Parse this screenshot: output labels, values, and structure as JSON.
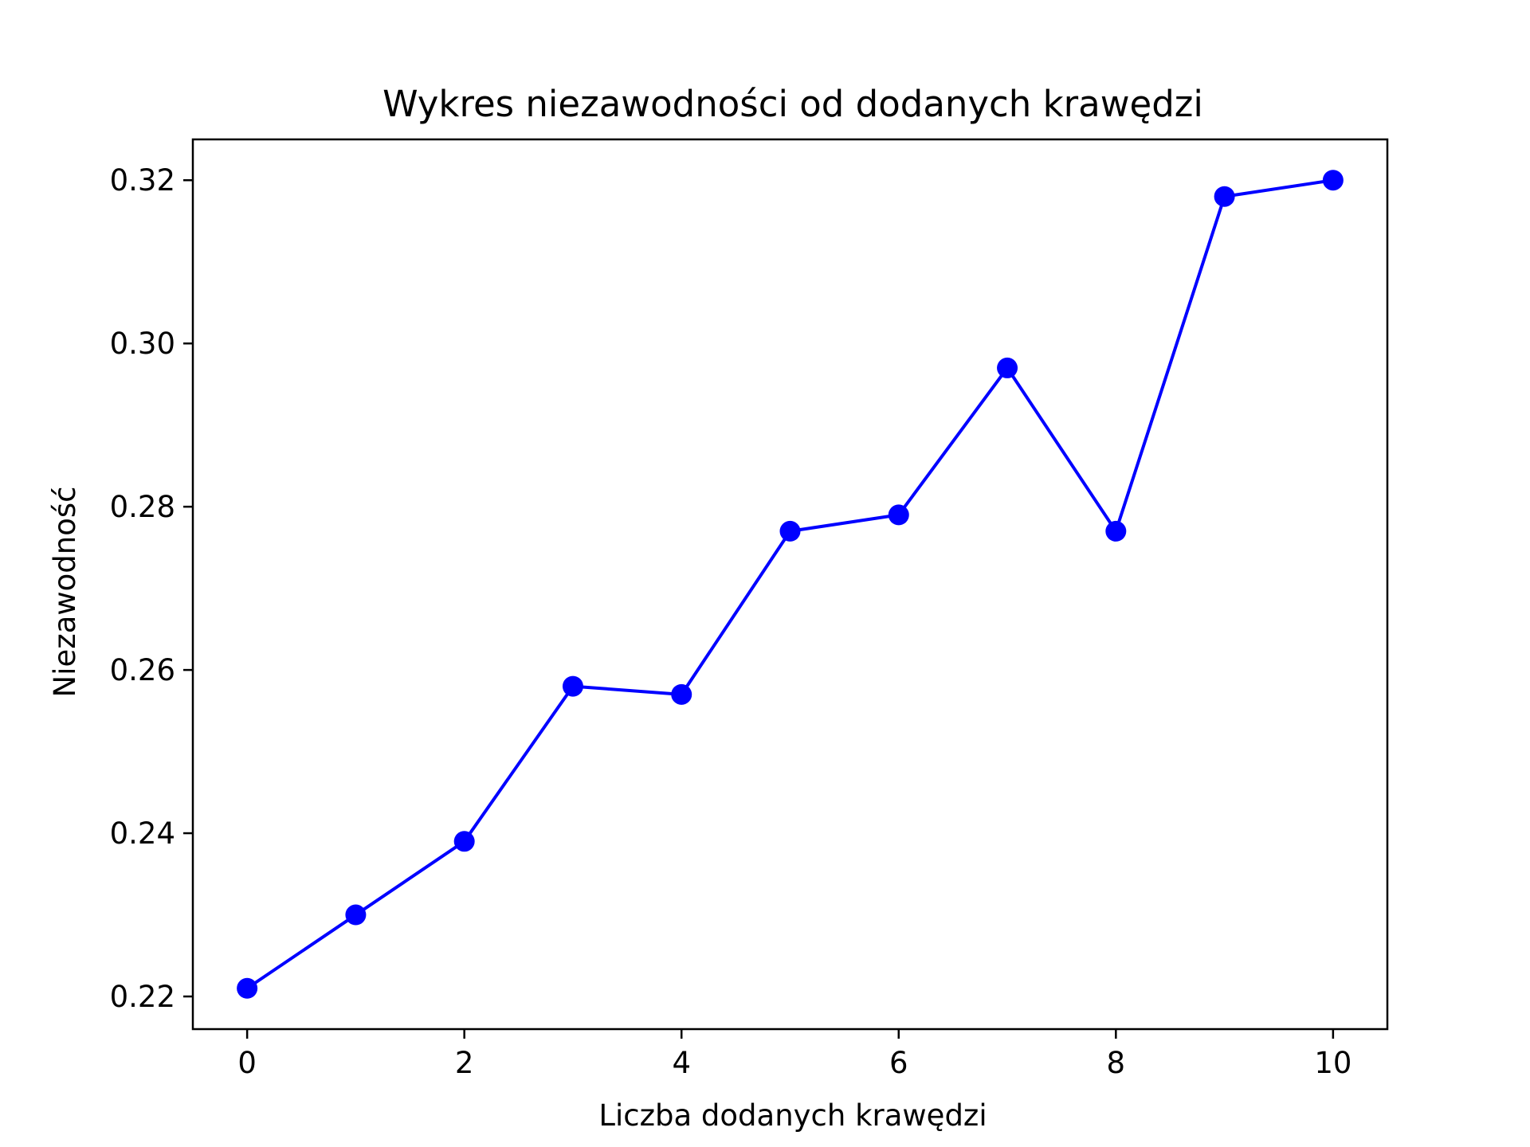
{
  "chart_data": {
    "type": "line",
    "title": "Wykres niezawodności od dodanych krawędzi",
    "xlabel": "Liczba dodanych krawędzi",
    "ylabel": "Niezawodność",
    "x": [
      0,
      1,
      2,
      3,
      4,
      5,
      6,
      7,
      8,
      9,
      10
    ],
    "series": [
      {
        "values": [
          0.221,
          0.23,
          0.239,
          0.258,
          0.257,
          0.277,
          0.279,
          0.297,
          0.277,
          0.318,
          0.32
        ],
        "color": "#0000ff",
        "marker": "circle"
      }
    ],
    "xlim": [
      -0.5,
      10.5
    ],
    "ylim": [
      0.216,
      0.325
    ],
    "xticks": [
      0,
      2,
      4,
      6,
      8,
      10
    ],
    "xtick_labels": [
      "0",
      "2",
      "4",
      "6",
      "8",
      "10"
    ],
    "yticks": [
      0.22,
      0.24,
      0.26,
      0.28,
      0.3,
      0.32
    ],
    "ytick_labels": [
      "0.22",
      "0.24",
      "0.26",
      "0.28",
      "0.30",
      "0.32"
    ],
    "grid": false,
    "legend": "none"
  }
}
